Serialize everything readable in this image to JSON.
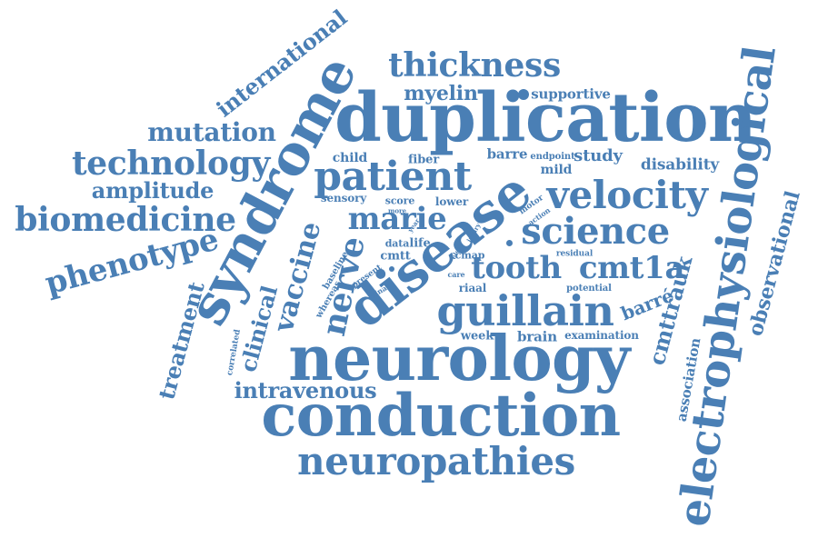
{
  "color": "#4a7fb5",
  "words": [
    "duplication",
    "neurology",
    "conduction",
    "neuropathies",
    "syndrome",
    "disease",
    "electrophysiological",
    "patient",
    "velocity",
    "science",
    "guillain",
    "tooth",
    "cmt1a",
    "marie",
    "nerve",
    "vaccine",
    "thickness",
    "myelin",
    "supportive",
    "international",
    "mutation",
    "technology",
    "amplitude",
    "biomedicine",
    "phenotype",
    "treatment",
    "clinical",
    "intravenous",
    "observational",
    "association",
    "cmttrauk",
    "barré",
    "barre",
    "study",
    "disability",
    "mild",
    "endpoint",
    "fiber",
    "child",
    "sensory",
    "score",
    "lower",
    "motor",
    "action",
    "data",
    "life",
    "cmtt",
    "cmap",
    "riaal",
    "potential",
    "week",
    "brain",
    "examination",
    "residual",
    "care",
    "else",
    "injury",
    "year",
    "present",
    "ulnar",
    "whereas",
    "baseline",
    "correlated",
    "more"
  ]
}
